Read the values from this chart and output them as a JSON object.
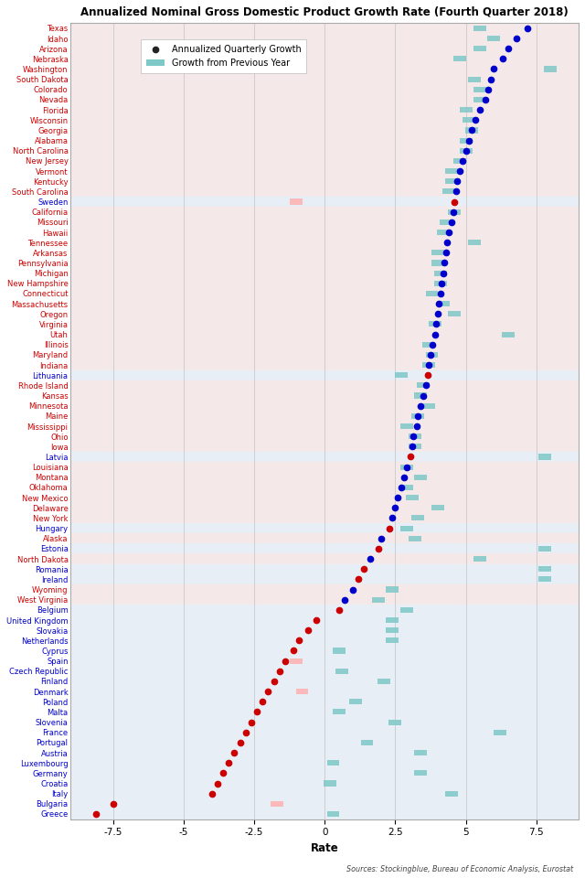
{
  "title": "Annualized Nominal Gross Domestic Product Growth Rate (Fourth Quarter 2018)",
  "xlabel": "Rate",
  "source_text": "Sources: Stockingblue, Bureau of Economic Analysis, Eurostat",
  "categories": [
    "Texas",
    "Idaho",
    "Arizona",
    "Nebraska",
    "Washington",
    "South Dakota",
    "Colorado",
    "Nevada",
    "Florida",
    "Wisconsin",
    "Georgia",
    "Alabama",
    "North Carolina",
    "New Jersey",
    "Vermont",
    "Kentucky",
    "South Carolina",
    "Sweden",
    "California",
    "Missouri",
    "Hawaii",
    "Tennessee",
    "Arkansas",
    "Pennsylvania",
    "Michigan",
    "New Hampshire",
    "Connecticut",
    "Massachusetts",
    "Oregon",
    "Virginia",
    "Utah",
    "Illinois",
    "Maryland",
    "Indiana",
    "Lithuania",
    "Rhode Island",
    "Kansas",
    "Minnesota",
    "Maine",
    "Mississippi",
    "Ohio",
    "Iowa",
    "Latvia",
    "Louisiana",
    "Montana",
    "Oklahoma",
    "New Mexico",
    "Delaware",
    "New York",
    "Hungary",
    "Alaska",
    "Estonia",
    "North Dakota",
    "Romania",
    "Ireland",
    "Wyoming",
    "West Virginia",
    "Belgium",
    "United Kingdom",
    "Slovakia",
    "Netherlands",
    "Cyprus",
    "Spain",
    "Czech Republic",
    "Finland",
    "Denmark",
    "Poland",
    "Malta",
    "Slovenia",
    "France",
    "Portugal",
    "Austria",
    "Luxembourg",
    "Germany",
    "Croatia",
    "Italy",
    "Bulgaria",
    "Greece"
  ],
  "quarterly_growth": [
    7.2,
    6.8,
    6.5,
    6.3,
    6.0,
    5.9,
    5.8,
    5.7,
    5.5,
    5.35,
    5.2,
    5.1,
    5.0,
    4.9,
    4.8,
    4.7,
    4.65,
    4.6,
    4.55,
    4.5,
    4.4,
    4.35,
    4.3,
    4.25,
    4.2,
    4.15,
    4.1,
    4.05,
    4.0,
    3.95,
    3.9,
    3.8,
    3.75,
    3.7,
    3.65,
    3.6,
    3.5,
    3.4,
    3.3,
    3.25,
    3.15,
    3.1,
    3.05,
    2.9,
    2.8,
    2.7,
    2.6,
    2.5,
    2.4,
    2.3,
    2.0,
    1.9,
    1.6,
    1.4,
    1.2,
    1.0,
    0.7,
    0.5,
    -0.3,
    -0.6,
    -0.9,
    -1.1,
    -1.4,
    -1.6,
    -1.8,
    -2.0,
    -2.2,
    -2.4,
    -2.6,
    -2.8,
    -3.0,
    -3.2,
    -3.4,
    -3.6,
    -3.8,
    -4.0,
    -7.5,
    -8.1
  ],
  "yearly_growth": [
    5.5,
    6.0,
    5.5,
    4.8,
    8.0,
    5.3,
    5.5,
    5.5,
    5.0,
    5.1,
    5.2,
    5.0,
    5.0,
    4.8,
    4.5,
    4.5,
    4.4,
    -1.0,
    4.6,
    4.3,
    4.2,
    5.3,
    4.0,
    4.0,
    4.1,
    4.1,
    3.8,
    4.2,
    4.6,
    3.9,
    6.5,
    3.7,
    3.8,
    3.7,
    2.7,
    3.5,
    3.4,
    3.7,
    3.3,
    2.9,
    3.2,
    3.2,
    7.8,
    2.9,
    3.4,
    2.9,
    3.1,
    4.0,
    3.3,
    2.9,
    3.2,
    7.8,
    5.5,
    7.8,
    7.8,
    2.4,
    1.9,
    2.9,
    2.4,
    2.4,
    2.4,
    0.5,
    -1.0,
    0.6,
    2.1,
    -0.8,
    1.1,
    0.5,
    2.5,
    6.2,
    1.5,
    3.4,
    0.3,
    3.4,
    0.2,
    4.5,
    -1.7,
    0.3,
    2.8,
    -0.8
  ],
  "us_states": [
    "Texas",
    "Idaho",
    "Arizona",
    "Nebraska",
    "Washington",
    "South Dakota",
    "Colorado",
    "Nevada",
    "Florida",
    "Wisconsin",
    "Georgia",
    "Alabama",
    "North Carolina",
    "New Jersey",
    "Vermont",
    "Kentucky",
    "South Carolina",
    "California",
    "Missouri",
    "Hawaii",
    "Tennessee",
    "Arkansas",
    "Pennsylvania",
    "Michigan",
    "New Hampshire",
    "Connecticut",
    "Massachusetts",
    "Oregon",
    "Virginia",
    "Utah",
    "Illinois",
    "Maryland",
    "Indiana",
    "Rhode Island",
    "Kansas",
    "Minnesota",
    "Maine",
    "Mississippi",
    "Ohio",
    "Iowa",
    "Louisiana",
    "Montana",
    "Oklahoma",
    "New Mexico",
    "Delaware",
    "New York",
    "Alaska",
    "North Dakota",
    "Wyoming",
    "West Virginia"
  ],
  "eu_states": [
    "Sweden",
    "Lithuania",
    "Latvia",
    "Hungary",
    "Estonia",
    "Romania",
    "Ireland",
    "Belgium",
    "United Kingdom",
    "Slovakia",
    "Netherlands",
    "Cyprus",
    "Spain",
    "Czech Republic",
    "Finland",
    "Denmark",
    "Poland",
    "Malta",
    "Slovenia",
    "France",
    "Portugal",
    "Austria",
    "Luxembourg",
    "Germany",
    "Croatia",
    "Italy",
    "Bulgaria",
    "Greece"
  ],
  "dot_color_us": "#0000cc",
  "dot_color_eu": "#cc0000",
  "square_color_positive": "#7fc8c8",
  "square_color_negative": "#ffb0b0",
  "row_color_odd": "#f5e8e8",
  "row_color_even": "#e8eef5",
  "grid_color": "#c8c8c8",
  "label_color_us": "#cc0000",
  "label_color_eu": "#0000cc",
  "xlim": [
    -9,
    9
  ],
  "xticks": [
    -7.5,
    -5.0,
    -2.5,
    0.0,
    2.5,
    5.0,
    7.5
  ]
}
